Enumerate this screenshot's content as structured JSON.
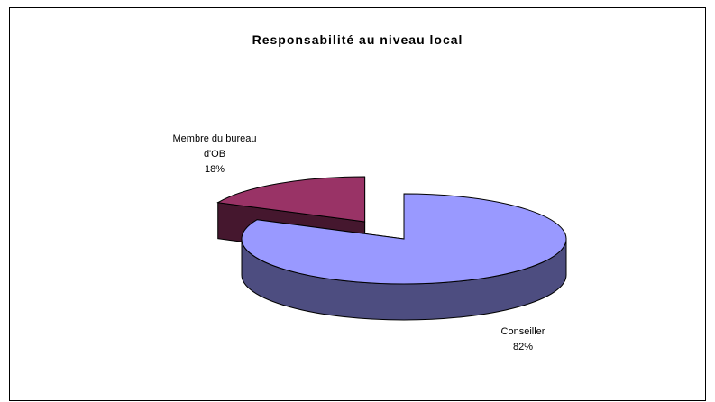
{
  "chart_data": {
    "type": "pie3d",
    "title": "Responsabilité au niveau local",
    "categories": [
      "Conseiller",
      "Membre du bureau d'OB"
    ],
    "values": [
      82,
      18
    ],
    "value_labels": [
      "82%",
      "18%"
    ],
    "colors": [
      "#9999ff",
      "#993366"
    ]
  }
}
